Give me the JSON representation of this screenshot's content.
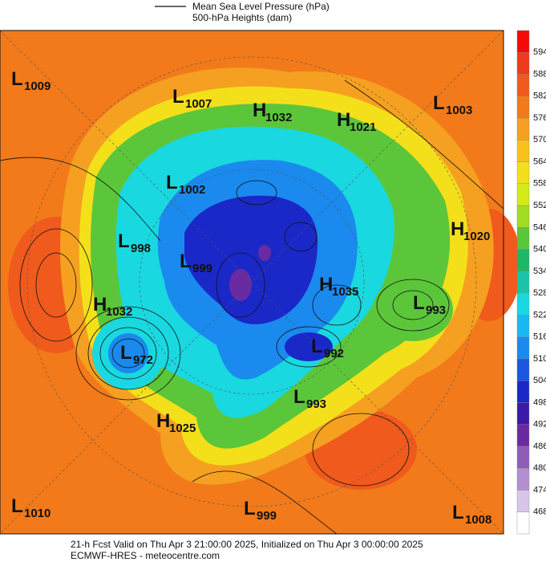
{
  "legend": {
    "line_label": "Mean Sea Level Pressure (hPa)",
    "fill_label": "500-hPa Heights (dam)"
  },
  "colorbar": {
    "ticks": [
      594,
      588,
      582,
      576,
      570,
      564,
      558,
      552,
      546,
      540,
      534,
      528,
      522,
      516,
      510,
      504,
      498,
      492,
      486,
      480,
      474,
      468
    ],
    "colors": [
      "#f50a0a",
      "#ee3a1e",
      "#f05a1c",
      "#f27a1a",
      "#f5a020",
      "#f8c21c",
      "#f4e01a",
      "#d6ea1a",
      "#a2dc22",
      "#5cc63a",
      "#1fb665",
      "#1bc4a8",
      "#19d8e0",
      "#19b8f2",
      "#1a8aee",
      "#1a58e0",
      "#1a28c8",
      "#3a1aa6",
      "#6a2aa2",
      "#8f5cb8",
      "#b48fd0",
      "#d8c6ea",
      "#ffffff"
    ]
  },
  "centers": [
    {
      "type": "L",
      "value": 1009
    },
    {
      "type": "L",
      "value": 1007
    },
    {
      "type": "H",
      "value": 1032
    },
    {
      "type": "H",
      "value": 1021
    },
    {
      "type": "L",
      "value": 1003
    },
    {
      "type": "L",
      "value": 1002
    },
    {
      "type": "H",
      "value": 1020
    },
    {
      "type": "L",
      "value": 998
    },
    {
      "type": "L",
      "value": 999
    },
    {
      "type": "H",
      "value": 1035
    },
    {
      "type": "L",
      "value": 993
    },
    {
      "type": "H",
      "value": 1032
    },
    {
      "type": "L",
      "value": 972
    },
    {
      "type": "L",
      "value": 992
    },
    {
      "type": "L",
      "value": 993
    },
    {
      "type": "H",
      "value": 1025
    },
    {
      "type": "L",
      "value": 1010
    },
    {
      "type": "L",
      "value": 999
    },
    {
      "type": "L",
      "value": 1008
    }
  ],
  "footer": {
    "line1": "21-h Fcst Valid on Thu Apr  3 21:00:00 2025, Initialized on Thu Apr  3 00:00:00 2025",
    "line2": "ECMWF-HRES  - meteocentre.com"
  }
}
